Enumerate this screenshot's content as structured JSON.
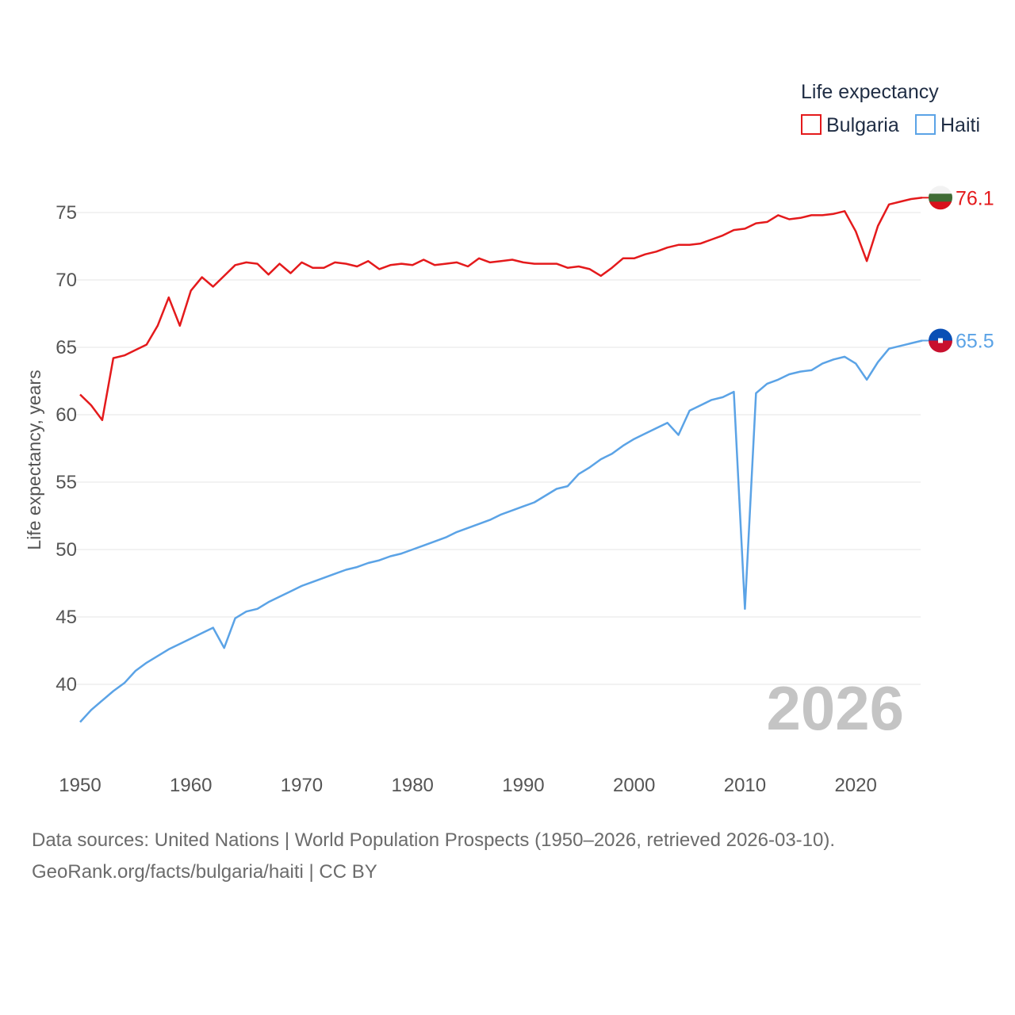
{
  "chart_data": {
    "type": "line",
    "legend_title": "Life expectancy",
    "ylabel": "Life expectancy, years",
    "xlabel": "",
    "xlim": [
      1950,
      2026
    ],
    "ylim": [
      35,
      77
    ],
    "x_ticks": [
      1950,
      1960,
      1970,
      1980,
      1990,
      2000,
      2010,
      2020
    ],
    "y_ticks": [
      40,
      45,
      50,
      55,
      60,
      65,
      70,
      75
    ],
    "legend_position": "top-right",
    "current_year": "2026",
    "x": [
      1950,
      1951,
      1952,
      1953,
      1954,
      1955,
      1956,
      1957,
      1958,
      1959,
      1960,
      1961,
      1962,
      1963,
      1964,
      1965,
      1966,
      1967,
      1968,
      1969,
      1970,
      1971,
      1972,
      1973,
      1974,
      1975,
      1976,
      1977,
      1978,
      1979,
      1980,
      1981,
      1982,
      1983,
      1984,
      1985,
      1986,
      1987,
      1988,
      1989,
      1990,
      1991,
      1992,
      1993,
      1994,
      1995,
      1996,
      1997,
      1998,
      1999,
      2000,
      2001,
      2002,
      2003,
      2004,
      2005,
      2006,
      2007,
      2008,
      2009,
      2010,
      2011,
      2012,
      2013,
      2014,
      2015,
      2016,
      2017,
      2018,
      2019,
      2020,
      2021,
      2022,
      2023,
      2024,
      2025,
      2026
    ],
    "series": [
      {
        "name": "Bulgaria",
        "color": "#e41a1c",
        "end_label": "76.1",
        "flag_colors": [
          "#f2f2f2",
          "#3f6b35",
          "#d9101b"
        ],
        "values": [
          61.5,
          60.7,
          59.6,
          64.2,
          64.4,
          64.8,
          65.2,
          66.6,
          68.7,
          66.6,
          69.2,
          70.2,
          69.5,
          70.3,
          71.1,
          71.3,
          71.2,
          70.4,
          71.2,
          70.5,
          71.3,
          70.9,
          70.9,
          71.3,
          71.2,
          71.0,
          71.4,
          70.8,
          71.1,
          71.2,
          71.1,
          71.5,
          71.1,
          71.2,
          71.3,
          71.0,
          71.6,
          71.3,
          71.4,
          71.5,
          71.3,
          71.2,
          71.2,
          71.2,
          70.9,
          71.0,
          70.8,
          70.3,
          70.9,
          71.6,
          71.6,
          71.9,
          72.1,
          72.4,
          72.6,
          72.6,
          72.7,
          73.0,
          73.3,
          73.7,
          73.8,
          74.2,
          74.3,
          74.8,
          74.5,
          74.6,
          74.8,
          74.8,
          74.9,
          75.1,
          73.6,
          71.4,
          74.0,
          75.6,
          75.8,
          76.0,
          76.1
        ]
      },
      {
        "name": "Haiti",
        "color": "#5ba3e6",
        "end_label": "65.5",
        "flag_colors": [
          "#0a4fb5",
          "#c8102e"
        ],
        "values": [
          37.2,
          38.1,
          38.8,
          39.5,
          40.1,
          41.0,
          41.6,
          42.1,
          42.6,
          43.0,
          43.4,
          43.8,
          44.2,
          42.7,
          44.9,
          45.4,
          45.6,
          46.1,
          46.5,
          46.9,
          47.3,
          47.6,
          47.9,
          48.2,
          48.5,
          48.7,
          49.0,
          49.2,
          49.5,
          49.7,
          50.0,
          50.3,
          50.6,
          50.9,
          51.3,
          51.6,
          51.9,
          52.2,
          52.6,
          52.9,
          53.2,
          53.5,
          54.0,
          54.5,
          54.7,
          55.6,
          56.1,
          56.7,
          57.1,
          57.7,
          58.2,
          58.6,
          59.0,
          59.4,
          58.5,
          60.3,
          60.7,
          61.1,
          61.3,
          61.7,
          45.6,
          61.6,
          62.3,
          62.6,
          63.0,
          63.2,
          63.3,
          63.8,
          64.1,
          64.3,
          63.8,
          62.6,
          63.9,
          64.9,
          65.1,
          65.3,
          65.5
        ]
      }
    ]
  },
  "footer": {
    "source_line": "Data sources: United Nations | World Population Prospects (1950–2026, retrieved 2026-03-10).",
    "credit_line": "GeoRank.org/facts/bulgaria/haiti | CC BY"
  }
}
